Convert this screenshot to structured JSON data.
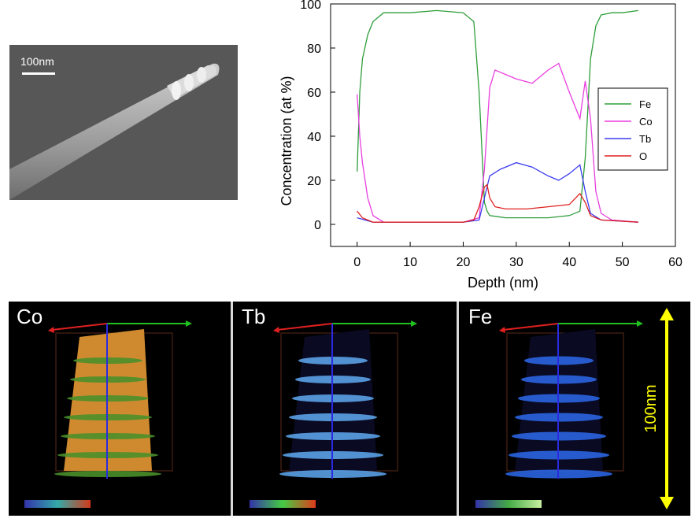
{
  "sem_image": {
    "scale_label": "100nm"
  },
  "chart_data": {
    "type": "line",
    "xlabel": "Depth (nm)",
    "ylabel": "Concentration (at %)",
    "xlim": [
      -5,
      60
    ],
    "ylim": [
      -10,
      100
    ],
    "xticks": [
      0,
      10,
      20,
      30,
      40,
      50,
      60
    ],
    "yticks": [
      0,
      20,
      40,
      60,
      80,
      100
    ],
    "legend_position": "right",
    "series": [
      {
        "name": "Fe",
        "color": "#2e9e3a",
        "x": [
          0,
          0.5,
          1,
          2,
          3,
          5,
          10,
          15,
          20,
          22,
          23,
          24,
          24.5,
          25,
          28,
          32,
          36,
          40,
          42,
          43,
          44,
          45,
          46,
          48,
          50,
          53
        ],
        "y": [
          24,
          60,
          75,
          86,
          92,
          96,
          96,
          97,
          96,
          92,
          60,
          10,
          6,
          4,
          3,
          3,
          3,
          4,
          6,
          30,
          75,
          90,
          95,
          96,
          96,
          97
        ]
      },
      {
        "name": "Co",
        "color": "#e83fe0",
        "x": [
          0,
          0.5,
          1,
          2,
          3,
          5,
          10,
          20,
          23,
          24,
          25,
          26,
          28,
          30,
          33,
          36,
          38,
          40,
          42,
          43,
          44,
          45,
          46,
          48,
          53
        ],
        "y": [
          59,
          40,
          28,
          12,
          4,
          1,
          1,
          1,
          3,
          25,
          62,
          70,
          68,
          66,
          64,
          70,
          73,
          60,
          48,
          65,
          48,
          15,
          5,
          2,
          1
        ]
      },
      {
        "name": "Tb",
        "color": "#3c3cf0",
        "x": [
          0,
          3,
          10,
          20,
          23,
          24,
          25,
          27,
          30,
          33,
          36,
          38,
          40,
          42,
          43,
          44,
          46,
          53
        ],
        "y": [
          3,
          1,
          1,
          1,
          2,
          12,
          22,
          25,
          28,
          26,
          22,
          20,
          23,
          27,
          15,
          5,
          2,
          1
        ]
      },
      {
        "name": "O",
        "color": "#e02020",
        "x": [
          0,
          1,
          3,
          10,
          20,
          22,
          23,
          24,
          24.5,
          25,
          26,
          28,
          32,
          36,
          40,
          42,
          43,
          44,
          46,
          53
        ],
        "y": [
          6,
          3,
          1,
          1,
          1,
          2,
          8,
          17,
          18,
          12,
          8,
          7,
          7,
          8,
          9,
          14,
          10,
          4,
          2,
          1
        ]
      }
    ]
  },
  "panels": [
    {
      "title": "Co"
    },
    {
      "title": "Tb"
    },
    {
      "title": "Fe"
    }
  ],
  "scale_arrow_label": "100nm"
}
